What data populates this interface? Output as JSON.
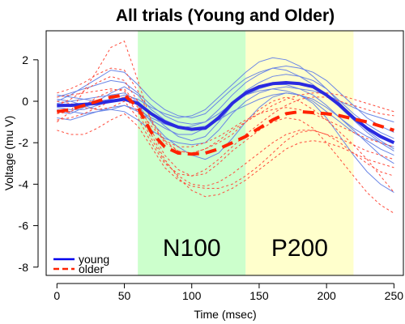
{
  "chart_data": {
    "type": "line",
    "title": "All trials (Young and Older)",
    "xlabel": "Time (msec)",
    "ylabel": "Voltage (mu V)",
    "xlim": [
      -8,
      257
    ],
    "ylim": [
      -8.4,
      3.4
    ],
    "x_ticks": [
      0,
      50,
      100,
      150,
      200,
      250
    ],
    "y_ticks": [
      -8,
      -6,
      -4,
      -2,
      0,
      2
    ],
    "regions": [
      {
        "label": "N100",
        "x_start": 60,
        "x_end": 140,
        "color": "#ccffcc"
      },
      {
        "label": "P200",
        "x_start": 140,
        "x_end": 220,
        "color": "#ffffcc"
      }
    ],
    "legend": {
      "position": "bottom-left",
      "entries": [
        {
          "name": "young",
          "color": "#0000ee",
          "dash": "solid"
        },
        {
          "name": "older",
          "color": "#ff2200",
          "dash": "dashed"
        }
      ]
    },
    "x": [
      0,
      10,
      20,
      30,
      40,
      50,
      60,
      70,
      80,
      90,
      100,
      110,
      120,
      130,
      140,
      150,
      160,
      170,
      180,
      190,
      200,
      210,
      220,
      230,
      240,
      250
    ],
    "series": [
      {
        "name": "young",
        "group": "young",
        "bold": true,
        "values": [
          -0.2,
          -0.2,
          -0.15,
          -0.1,
          0.0,
          0.1,
          -0.1,
          -0.6,
          -1.0,
          -1.25,
          -1.35,
          -1.3,
          -0.8,
          -0.1,
          0.4,
          0.7,
          0.85,
          0.9,
          0.85,
          0.7,
          0.3,
          -0.2,
          -0.8,
          -1.3,
          -1.7,
          -2.0
        ]
      },
      {
        "name": "older",
        "group": "older",
        "bold": true,
        "values": [
          -0.5,
          -0.4,
          -0.2,
          0.0,
          0.2,
          0.3,
          -0.3,
          -1.5,
          -2.2,
          -2.5,
          -2.55,
          -2.5,
          -2.3,
          -2.0,
          -1.7,
          -1.3,
          -0.9,
          -0.6,
          -0.5,
          -0.55,
          -0.6,
          -0.7,
          -0.85,
          -1.0,
          -1.2,
          -1.4
        ]
      },
      {
        "group": "young",
        "values": [
          -0.1,
          0.0,
          0.1,
          0.2,
          0.3,
          0.4,
          0.0,
          -0.6,
          -1.2,
          -1.7,
          -1.9,
          -1.7,
          -1.0,
          -0.2,
          0.5,
          0.9,
          1.2,
          1.3,
          1.2,
          1.0,
          0.6,
          0.0,
          -0.6,
          -1.1,
          -1.5,
          -1.8
        ]
      },
      {
        "group": "young",
        "values": [
          -0.4,
          -0.5,
          -0.6,
          -0.5,
          -0.3,
          -0.2,
          -0.4,
          -0.8,
          -1.1,
          -1.3,
          -1.2,
          -1.0,
          -0.4,
          0.3,
          0.9,
          1.3,
          1.6,
          1.7,
          1.6,
          1.4,
          1.0,
          0.4,
          -0.2,
          -0.8,
          -1.2,
          -1.5
        ]
      },
      {
        "group": "young",
        "values": [
          0.2,
          0.4,
          0.6,
          0.8,
          1.0,
          0.9,
          0.4,
          -0.2,
          -0.7,
          -1.0,
          -1.1,
          -1.0,
          -0.6,
          -0.1,
          0.3,
          0.6,
          0.8,
          0.8,
          0.6,
          0.3,
          -0.2,
          -0.8,
          -1.4,
          -2.0,
          -2.6,
          -3.0
        ]
      },
      {
        "group": "young",
        "values": [
          -0.8,
          -0.9,
          -0.7,
          -0.5,
          -0.4,
          -0.5,
          -0.9,
          -1.4,
          -1.8,
          -2.0,
          -2.1,
          -2.0,
          -1.4,
          -0.6,
          0.0,
          0.4,
          0.6,
          0.7,
          0.6,
          0.5,
          0.3,
          0.0,
          -0.3,
          -0.6,
          -0.8,
          -1.0
        ]
      },
      {
        "group": "young",
        "values": [
          0.0,
          0.3,
          0.7,
          1.1,
          1.5,
          1.4,
          0.8,
          0.1,
          -0.4,
          -0.7,
          -0.8,
          -0.6,
          0.0,
          0.6,
          1.1,
          1.4,
          1.6,
          1.5,
          1.2,
          0.8,
          0.3,
          -0.3,
          -0.9,
          -1.5,
          -2.0,
          -2.4
        ]
      },
      {
        "group": "young",
        "values": [
          -0.3,
          -0.4,
          -0.4,
          -0.2,
          0.0,
          0.2,
          -0.2,
          -1.0,
          -1.7,
          -2.2,
          -2.6,
          -2.8,
          -2.5,
          -1.8,
          -1.0,
          -0.3,
          0.2,
          0.4,
          0.3,
          0.0,
          -0.5,
          -1.0,
          -1.5,
          -1.9,
          -2.3,
          -2.6
        ]
      },
      {
        "group": "young",
        "values": [
          0.1,
          0.0,
          -0.2,
          -0.4,
          -0.4,
          -0.2,
          -0.5,
          -0.9,
          -1.3,
          -1.6,
          -1.6,
          -1.3,
          -0.7,
          -0.1,
          0.3,
          0.5,
          0.6,
          0.5,
          0.3,
          -0.1,
          -0.8,
          -1.7,
          -2.6,
          -3.4,
          -4.0,
          -4.4
        ]
      },
      {
        "group": "young",
        "values": [
          -0.5,
          -0.6,
          -0.3,
          0.0,
          0.4,
          0.7,
          0.3,
          -0.4,
          -0.9,
          -1.2,
          -1.3,
          -1.2,
          -0.9,
          -0.5,
          -0.2,
          0.1,
          0.3,
          0.4,
          0.3,
          0.1,
          -0.3,
          -0.8,
          -1.3,
          -1.7,
          -2.0,
          -2.2
        ]
      },
      {
        "group": "young",
        "values": [
          0.3,
          0.2,
          0.1,
          0.0,
          0.1,
          0.3,
          0.1,
          -0.3,
          -0.6,
          -0.8,
          -0.7,
          -0.4,
          0.2,
          0.8,
          1.4,
          1.9,
          2.1,
          2.0,
          1.7,
          1.2,
          0.6,
          -0.1,
          -0.8,
          -1.4,
          -1.9,
          -2.3
        ]
      },
      {
        "group": "older",
        "values": [
          -1.0,
          -0.5,
          0.5,
          1.5,
          2.6,
          2.9,
          1.0,
          -1.0,
          -2.0,
          -2.4,
          -2.5,
          -2.3,
          -2.0,
          -1.6,
          -1.0,
          -0.4,
          0.0,
          0.2,
          0.0,
          -0.4,
          -0.9,
          -1.5,
          -2.1,
          -2.8,
          -3.6,
          -4.4
        ]
      },
      {
        "group": "older",
        "values": [
          -1.4,
          -1.6,
          -1.6,
          -1.3,
          -0.9,
          -0.6,
          -1.2,
          -2.2,
          -3.2,
          -3.8,
          -4.1,
          -4.2,
          -4.2,
          -4.0,
          -3.6,
          -3.1,
          -2.5,
          -1.9,
          -1.5,
          -1.4,
          -1.6,
          -2.0,
          -2.5,
          -3.0,
          -3.4,
          -3.6
        ]
      },
      {
        "group": "older",
        "values": [
          -0.2,
          0.1,
          0.5,
          0.9,
          1.2,
          1.0,
          0.0,
          -1.4,
          -2.6,
          -3.3,
          -3.6,
          -3.5,
          -3.0,
          -2.4,
          -1.9,
          -1.4,
          -1.0,
          -0.8,
          -0.9,
          -1.3,
          -2.0,
          -2.8,
          -3.6,
          -4.4,
          -5.0,
          -5.4
        ]
      },
      {
        "group": "older",
        "values": [
          0.0,
          -0.1,
          -0.3,
          -0.4,
          -0.3,
          0.0,
          -0.8,
          -2.0,
          -3.0,
          -3.5,
          -3.6,
          -3.3,
          -2.8,
          -2.2,
          -1.6,
          -1.1,
          -0.6,
          -0.2,
          0.1,
          0.2,
          0.2,
          0.0,
          -0.2,
          -0.4,
          -0.6,
          -0.7
        ]
      },
      {
        "group": "older",
        "values": [
          -0.6,
          -0.5,
          -0.2,
          0.2,
          0.5,
          0.6,
          -0.2,
          -1.6,
          -2.8,
          -3.7,
          -4.3,
          -4.6,
          -4.5,
          -4.2,
          -3.8,
          -3.3,
          -2.8,
          -2.3,
          -2.0,
          -1.9,
          -2.0,
          -2.2,
          -2.5,
          -2.8,
          -3.0,
          -3.2
        ]
      },
      {
        "group": "older",
        "values": [
          0.4,
          0.6,
          0.9,
          1.3,
          1.6,
          1.5,
          0.5,
          -0.9,
          -1.9,
          -2.4,
          -2.5,
          -2.3,
          -1.9,
          -1.4,
          -1.0,
          -0.6,
          -0.2,
          0.1,
          0.3,
          0.4,
          0.4,
          0.3,
          0.1,
          -0.1,
          -0.3,
          -0.5
        ]
      },
      {
        "group": "older",
        "values": [
          -0.9,
          -0.8,
          -0.6,
          -0.3,
          0.0,
          0.2,
          -0.5,
          -1.8,
          -2.9,
          -3.6,
          -4.0,
          -4.1,
          -3.9,
          -3.5,
          -3.0,
          -2.5,
          -2.0,
          -1.6,
          -1.4,
          -1.4,
          -1.6,
          -1.8,
          -2.1,
          -2.4,
          -2.6,
          -2.8
        ]
      },
      {
        "group": "older",
        "values": [
          0.2,
          0.3,
          0.4,
          0.5,
          0.6,
          0.5,
          -0.3,
          -1.2,
          -1.9,
          -2.2,
          -2.2,
          -2.0,
          -1.7,
          -1.3,
          -0.9,
          -0.6,
          -0.4,
          -0.3,
          -0.4,
          -0.6,
          -0.9,
          -1.2,
          -1.5,
          -1.8,
          -2.0,
          -2.2
        ]
      }
    ]
  }
}
